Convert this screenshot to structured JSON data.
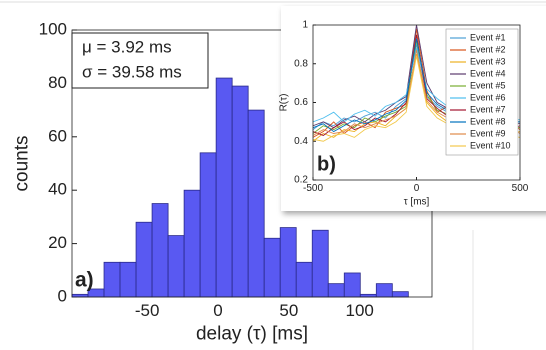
{
  "chart_data": [
    {
      "type": "histogram",
      "xlabel": "delay (τ) [ms]",
      "ylabel": "counts",
      "bins": [
        -103,
        -91.7,
        -80.4,
        -69.1,
        -57.8,
        -46.5,
        -35.2,
        -23.9,
        -12.6,
        -1.3,
        10,
        21.3,
        32.6,
        43.9,
        55.2,
        66.5,
        77.8,
        89.1,
        100.4,
        111.7,
        123,
        134.3
      ],
      "values": [
        1,
        3,
        13,
        13,
        28,
        35,
        23,
        40,
        54,
        82,
        79,
        70,
        22,
        26,
        13,
        25,
        5,
        9,
        1,
        5,
        2
      ],
      "color": "#5959f2",
      "xlim": [
        -103,
        151
      ],
      "ylim": [
        0,
        100
      ],
      "xticks": [
        -50,
        0,
        50,
        100
      ],
      "yticks": [
        0,
        20,
        40,
        60,
        80,
        100
      ],
      "grid": false,
      "annotations": [
        "μ = 3.92 ms",
        "σ = 39.58 ms",
        "a)"
      ]
    },
    {
      "type": "line",
      "xlabel": "τ [ms]",
      "ylabel": "R(τ)",
      "x": [
        -500,
        -450,
        -400,
        -350,
        -300,
        -250,
        -200,
        -150,
        -100,
        -50,
        0,
        50,
        100,
        150,
        200,
        250,
        300,
        350,
        400,
        450,
        500
      ],
      "series": [
        {
          "name": "Event #1",
          "color": "#4d9fd6",
          "values": [
            0.46,
            0.5,
            0.48,
            0.52,
            0.5,
            0.53,
            0.55,
            0.52,
            0.58,
            0.62,
            0.9,
            0.63,
            0.58,
            0.55,
            0.56,
            0.52,
            0.53,
            0.5,
            0.51,
            0.49,
            0.5
          ]
        },
        {
          "name": "Event #2",
          "color": "#d95319",
          "values": [
            0.42,
            0.45,
            0.5,
            0.44,
            0.48,
            0.5,
            0.47,
            0.55,
            0.57,
            0.59,
            0.98,
            0.66,
            0.55,
            0.58,
            0.52,
            0.5,
            0.48,
            0.52,
            0.47,
            0.5,
            0.46
          ]
        },
        {
          "name": "Event #3",
          "color": "#edb120",
          "values": [
            0.4,
            0.44,
            0.42,
            0.46,
            0.45,
            0.49,
            0.5,
            0.48,
            0.53,
            0.57,
            0.85,
            0.6,
            0.54,
            0.5,
            0.52,
            0.49,
            0.47,
            0.46,
            0.48,
            0.44,
            0.45
          ]
        },
        {
          "name": "Event #4",
          "color": "#5b3a6e",
          "values": [
            0.48,
            0.5,
            0.47,
            0.51,
            0.53,
            0.5,
            0.54,
            0.56,
            0.6,
            0.63,
            1,
            0.7,
            0.6,
            0.57,
            0.55,
            0.54,
            0.52,
            0.5,
            0.52,
            0.5,
            0.49
          ]
        },
        {
          "name": "Event #5",
          "color": "#77ac30",
          "values": [
            0.44,
            0.48,
            0.46,
            0.49,
            0.47,
            0.52,
            0.5,
            0.53,
            0.55,
            0.58,
            0.92,
            0.64,
            0.56,
            0.54,
            0.53,
            0.51,
            0.5,
            0.49,
            0.47,
            0.48,
            0.47
          ]
        },
        {
          "name": "Event #6",
          "color": "#4dbeee",
          "values": [
            0.5,
            0.52,
            0.55,
            0.5,
            0.54,
            0.56,
            0.53,
            0.58,
            0.6,
            0.64,
            0.88,
            0.67,
            0.62,
            0.58,
            0.57,
            0.55,
            0.54,
            0.53,
            0.5,
            0.52,
            0.51
          ]
        },
        {
          "name": "Event #7",
          "color": "#a2142f",
          "values": [
            0.45,
            0.43,
            0.47,
            0.5,
            0.46,
            0.48,
            0.52,
            0.5,
            0.54,
            0.6,
            0.95,
            0.62,
            0.57,
            0.53,
            0.5,
            0.52,
            0.49,
            0.47,
            0.5,
            0.46,
            0.48
          ]
        },
        {
          "name": "Event #8",
          "color": "#0072bd",
          "values": [
            0.47,
            0.49,
            0.45,
            0.48,
            0.51,
            0.49,
            0.51,
            0.54,
            0.56,
            0.61,
            0.93,
            0.65,
            0.59,
            0.56,
            0.54,
            0.53,
            0.51,
            0.5,
            0.49,
            0.51,
            0.5
          ]
        },
        {
          "name": "Event #9",
          "color": "#e08a4a",
          "values": [
            0.43,
            0.46,
            0.44,
            0.45,
            0.49,
            0.47,
            0.49,
            0.51,
            0.53,
            0.57,
            0.87,
            0.61,
            0.55,
            0.52,
            0.51,
            0.5,
            0.46,
            0.48,
            0.45,
            0.47,
            0.44
          ]
        },
        {
          "name": "Event #10",
          "color": "#f2c94c",
          "values": [
            0.41,
            0.4,
            0.43,
            0.44,
            0.42,
            0.46,
            0.48,
            0.47,
            0.5,
            0.55,
            0.84,
            0.58,
            0.52,
            0.49,
            0.48,
            0.46,
            0.45,
            0.44,
            0.46,
            0.43,
            0.42
          ]
        }
      ],
      "xlim": [
        -500,
        500
      ],
      "ylim": [
        0.2,
        1
      ],
      "xticks": [
        -500,
        0,
        500
      ],
      "yticks": [
        0.2,
        0.4,
        0.6,
        0.8,
        1
      ],
      "grid": false,
      "legend": "northeast",
      "annotations": [
        "b)"
      ]
    }
  ]
}
